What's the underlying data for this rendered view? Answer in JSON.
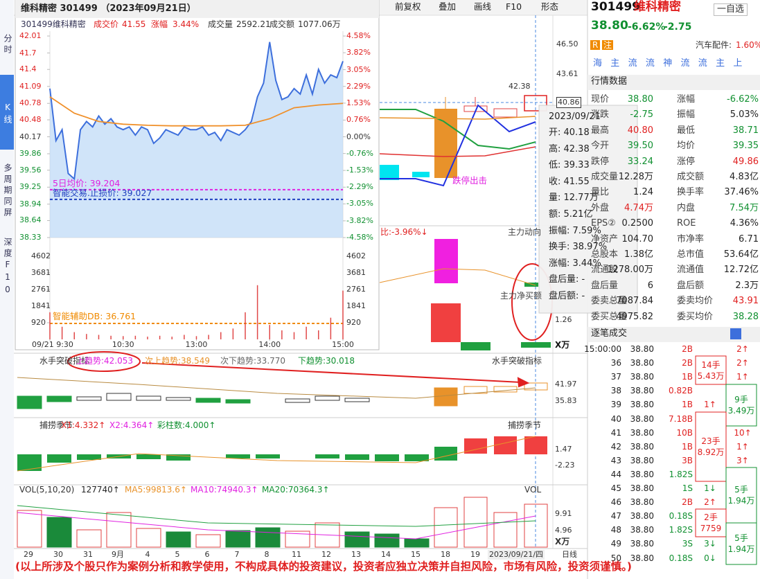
{
  "sidebar": [
    "分时",
    "K线",
    "多周期同屏",
    "深度F10"
  ],
  "toolbar": [
    "前复权",
    "叠加",
    "画线",
    "F10",
    "形态"
  ],
  "popup": {
    "title": "维科精密 301499 （2023年09月21日）",
    "code_name": "301499维科精密",
    "price_label": "成交价",
    "price": "41.55",
    "change_label": "涨幅",
    "change": "3.44%",
    "volume_label": "成交量",
    "volume": "2592.21",
    "amount_label": "成交额",
    "amount": "1077.06万",
    "notes": [
      {
        "label": "5日均价: 39.204",
        "value": 39.204,
        "color": "#e020e0"
      },
      {
        "label": "智能交易.止损价: 39.027",
        "value": 39.027,
        "color": "#2040c0"
      }
    ],
    "db_note": {
      "label": "智能辅助DB: 36.761",
      "color": "#f08a00"
    },
    "chart": {
      "type": "line",
      "xlim": [
        0,
        240
      ],
      "xticks": [
        {
          "value": 0,
          "label": "09/21 9:30"
        },
        {
          "value": 60,
          "label": "10:30"
        },
        {
          "value": 120,
          "label": "13:00"
        },
        {
          "value": 180,
          "label": "14:00"
        },
        {
          "value": 240,
          "label": "15:00"
        }
      ],
      "ylim": [
        38.33,
        42.01
      ],
      "yticks": [
        42.01,
        41.7,
        41.4,
        41.09,
        40.78,
        40.48,
        40.17,
        39.86,
        39.56,
        39.25,
        38.94,
        38.64,
        38.33
      ],
      "y2lim": [
        -4.58,
        4.58
      ],
      "y2ticks": [
        {
          "value": 4.58,
          "label": "4.58%"
        },
        {
          "value": 3.82,
          "label": "3.82%"
        },
        {
          "value": 3.05,
          "label": "3.05%"
        },
        {
          "value": 2.29,
          "label": "2.29%"
        },
        {
          "value": 1.53,
          "label": "1.53%"
        },
        {
          "value": 0.76,
          "label": "0.76%"
        },
        {
          "value": 0,
          "label": "0.00%"
        },
        {
          "value": -0.76,
          "label": "-0.76%"
        },
        {
          "value": -1.53,
          "label": "-1.53%"
        },
        {
          "value": -2.29,
          "label": "-2.29%"
        },
        {
          "value": -3.05,
          "label": "-3.05%"
        },
        {
          "value": -3.82,
          "label": "-3.82%"
        },
        {
          "value": -4.58,
          "label": "-4.58%"
        }
      ],
      "series": [
        {
          "color": "#3d6fdc",
          "values": [
            41.05,
            40.1,
            40.3,
            39.5,
            39.4,
            40.3,
            40.45,
            40.35,
            40.55,
            40.4,
            40.5,
            40.35,
            40.3,
            40.35,
            40.2,
            40.35,
            40.3,
            40.05,
            40.15,
            40.3,
            40.25,
            40.2,
            40.35,
            40.3,
            40.3,
            40.35,
            40.2,
            40.25,
            40.1,
            40.3,
            40.25,
            40.2,
            40.3,
            40.45,
            40.9,
            41.15,
            41.9,
            41.2,
            40.85,
            40.9,
            41.05,
            40.95,
            41.3,
            40.95,
            41.4,
            41.15,
            41.3,
            41.25,
            41.55
          ]
        },
        {
          "color": "#f0902a",
          "values": [
            40.9,
            40.6,
            40.45,
            40.4,
            40.38,
            40.37,
            40.37,
            40.37,
            40.38,
            40.5,
            40.7,
            40.75,
            40.78
          ]
        }
      ],
      "volume": {
        "color": "#e04848",
        "ylim": [
          0,
          4602
        ],
        "yticks": [
          4602,
          3681,
          2761,
          1841,
          920
        ],
        "values": [
          1500,
          700,
          400,
          300,
          250,
          200,
          180,
          200,
          150,
          200,
          150,
          250,
          180,
          250,
          400,
          600,
          1500,
          3000,
          800,
          500,
          400,
          700,
          500,
          1200,
          2700
        ]
      }
    }
  },
  "main": {
    "axis": [
      "46.50",
      "43.61",
      "40.86",
      "42.38"
    ],
    "signal": "跌停出击",
    "flow_title": "主力动向",
    "flow_pct": "比:-3.96%↓",
    "net_buy": "主力净买额",
    "flow_axis": "1.26",
    "unit": "X万"
  },
  "tooltip": {
    "date": "2023/09/21",
    "lines": [
      "开: 40.18",
      "高: 42.38",
      "低: 39.33",
      "收: 41.55",
      "量: 12.77万",
      "额: 5.21亿",
      "振幅: 7.59%",
      "换手: 38.97%",
      "涨幅: 3.44%",
      "盘后量: -",
      "盘后额: -"
    ]
  },
  "indicators": [
    {
      "name": "水手突破指标",
      "items": [
        "上趋势:42.053",
        "次上趋势:38.549",
        "次下趋势:33.770",
        "下趋势:30.018"
      ],
      "right": "水手突破指标",
      "axis": [
        "41.97",
        "35.83"
      ]
    },
    {
      "name": "捕捞季节",
      "items": [
        "X1:4.332↑",
        "X2:4.364↑",
        "彩柱数:4.000↑"
      ],
      "right": "捕捞季节",
      "axis": [
        "1.47",
        "-2.23"
      ]
    },
    {
      "name": "VOL(5,10,20)",
      "items": [
        "127740↑",
        "MA5:99813.6↑",
        "MA10:74940.3↑",
        "MA20:70364.3↑"
      ],
      "right": "VOL",
      "axis": [
        "9.91",
        "4.96",
        "X万"
      ]
    }
  ],
  "dates": [
    "29",
    "30",
    "31",
    "9月",
    "4",
    "5",
    "6",
    "7",
    "8",
    "11",
    "12",
    "13",
    "14",
    "15",
    "18",
    "19",
    "2023/09/21/四",
    "日线"
  ],
  "quote": {
    "code": "301499",
    "name": "维科精密",
    "add": "一自选",
    "price": "38.80",
    "pct": "-6.62%",
    "chg": "-2.75",
    "badges": [
      "R",
      "注"
    ],
    "sector": "汽车配件:",
    "sector_pct": "1.60%",
    "buttons": [
      "海",
      "主",
      "流",
      "流",
      "神",
      "流",
      "流",
      "主",
      "上"
    ]
  },
  "market": {
    "title": "行情数据",
    "rows": [
      [
        "现价",
        "38.80",
        "涨幅",
        "-6.62%"
      ],
      [
        "涨跌",
        "-2.75",
        "振幅",
        "5.03%"
      ],
      [
        "最高",
        "40.80",
        "最低",
        "38.71"
      ],
      [
        "今开",
        "39.50",
        "均价",
        "39.35"
      ],
      [
        "跌停",
        "33.24",
        "涨停",
        "49.86"
      ],
      [
        "成交量",
        "12.28万",
        "成交额",
        "4.83亿"
      ],
      [
        "量比",
        "1.24",
        "换手率",
        "37.46%"
      ],
      [
        "外盘",
        "4.74万",
        "内盘",
        "7.54万"
      ],
      [
        "EPS②",
        "0.2500",
        "ROE",
        "4.36%"
      ],
      [
        "净资产",
        "104.70",
        "市净率",
        "6.71"
      ],
      [
        "总股本",
        "1.38亿",
        "总市值",
        "53.64亿"
      ],
      [
        "流通股",
        "1278.00万",
        "流通值",
        "12.72亿"
      ],
      [
        "盘后量",
        "6",
        "盘后额",
        "2.3万"
      ],
      [
        "委卖总量",
        "7087.84",
        "委卖均价",
        "43.91"
      ],
      [
        "委买总量",
        "4975.82",
        "委买均价",
        "38.28"
      ]
    ]
  },
  "trades": {
    "title": "逐笔成交",
    "rows": [
      [
        "15:00:00",
        "38.80",
        "2B",
        "2↑"
      ],
      [
        "36",
        "38.80",
        "2B",
        "2↑"
      ],
      [
        "37",
        "38.80",
        "1B",
        "1↑"
      ],
      [
        "38",
        "38.80",
        "0.82B"
      ],
      [
        "39",
        "38.80",
        "1B",
        "1↑"
      ],
      [
        "40",
        "38.80",
        "7.18B"
      ],
      [
        "41",
        "38.80",
        "10B",
        "10↑"
      ],
      [
        "42",
        "38.80",
        "1B",
        "1↑"
      ],
      [
        "43",
        "38.80",
        "3B",
        "3↑"
      ],
      [
        "44",
        "38.80",
        "1.82S"
      ],
      [
        "45",
        "38.80",
        "1S",
        "1↓"
      ],
      [
        "46",
        "38.80",
        "2B",
        "2↑"
      ],
      [
        "47",
        "38.80",
        "0.18S"
      ],
      [
        "48",
        "38.80",
        "1.82S"
      ],
      [
        "49",
        "38.80",
        "3S",
        "3↓"
      ],
      [
        "50",
        "38.80",
        "0.18S",
        "0↓"
      ]
    ],
    "groups": [
      [
        "14手",
        "5.43万"
      ],
      [
        "9手",
        "3.49万"
      ],
      [
        "23手",
        "8.92万"
      ],
      [
        "5手",
        "1.94万"
      ],
      [
        "2手",
        "7759"
      ],
      [
        "5手",
        "1.94万"
      ]
    ]
  },
  "disclaimer": "(以上所涉及个股只作为案例分析和教学使用，不构成具体的投资建议，投资者应独立决策并自担风险，市场有风险，投资须谨慎。)"
}
